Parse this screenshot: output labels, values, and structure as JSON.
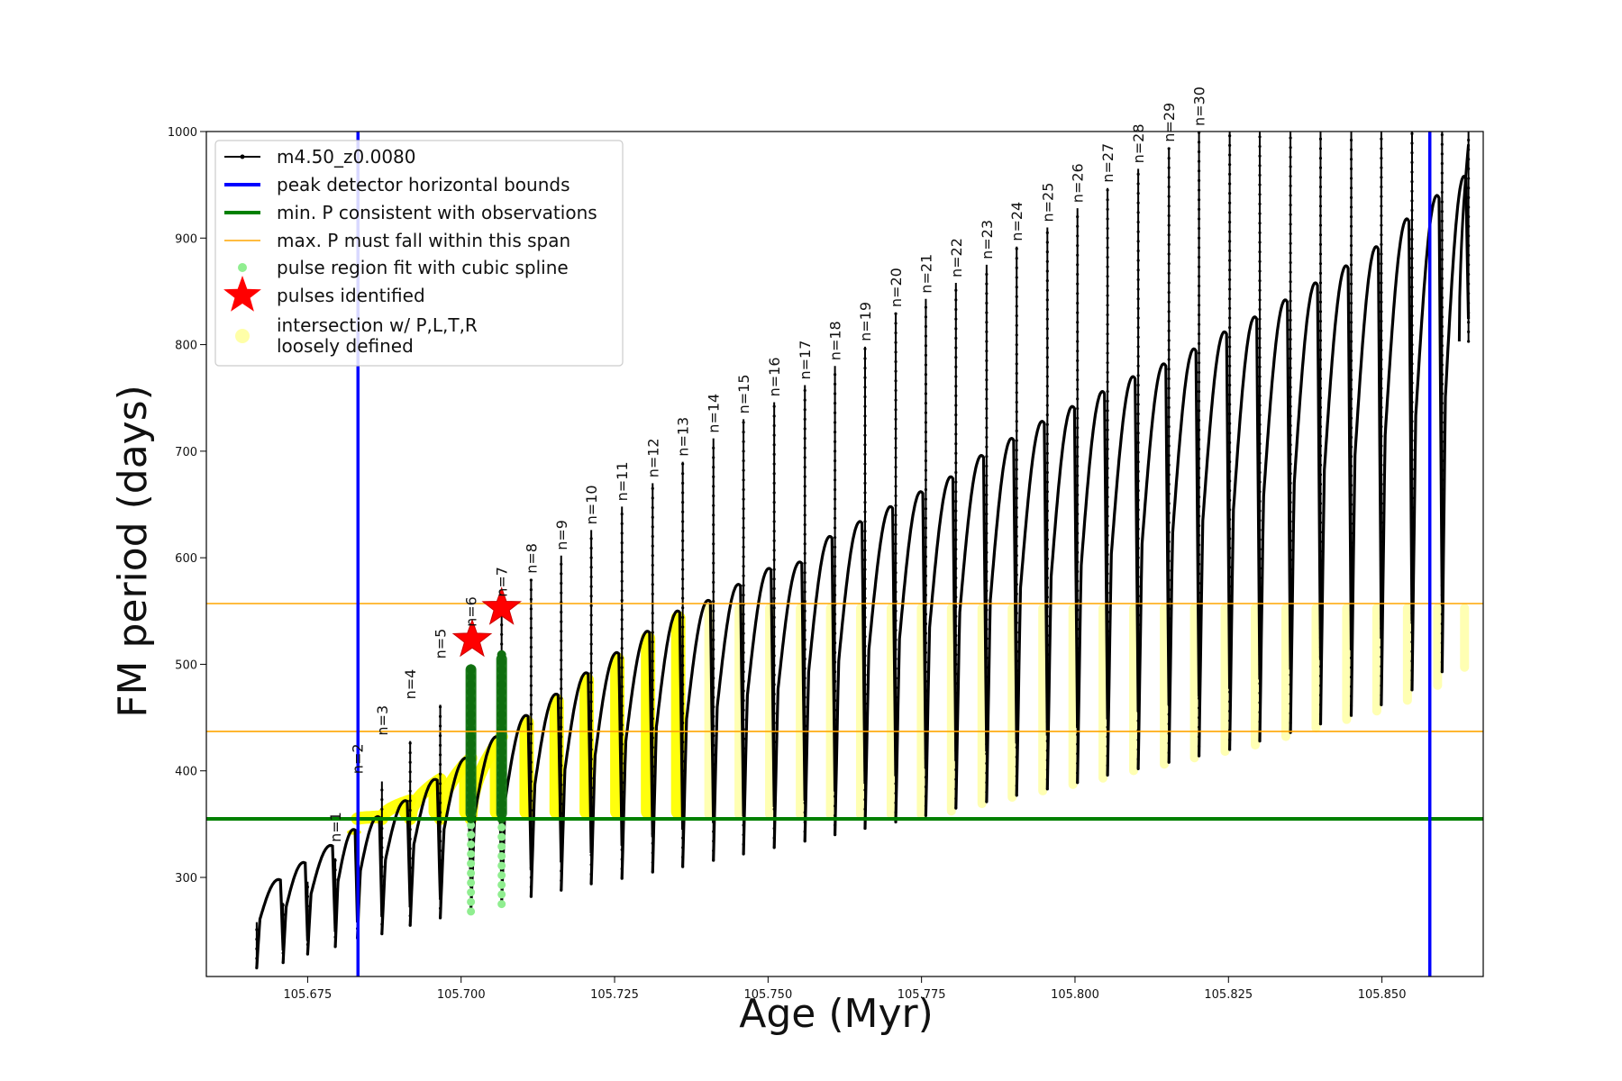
{
  "chart_data": {
    "type": "line",
    "title": "",
    "xlabel": "Age (Myr)",
    "ylabel": "FM period (days)",
    "xlim": [
      105.6585,
      105.8665
    ],
    "ylim": [
      207,
      1000
    ],
    "xticks": [
      105.675,
      105.7,
      105.725,
      105.75,
      105.775,
      105.8,
      105.825,
      105.85
    ],
    "xtick_labels": [
      "105.675",
      "105.700",
      "105.725",
      "105.750",
      "105.775",
      "105.800",
      "105.825",
      "105.850"
    ],
    "yticks": [
      300,
      400,
      500,
      600,
      700,
      800,
      900,
      1000
    ],
    "ytick_labels": [
      "300",
      "400",
      "500",
      "600",
      "700",
      "800",
      "900",
      "1000"
    ],
    "grid": false,
    "legend": {
      "placement": "top-left",
      "entries": [
        {
          "label": "m4.50_z0.0080",
          "marker": "line-dot",
          "color": "#000000"
        },
        {
          "label": "peak detector horizontal bounds",
          "marker": "thick-line",
          "color": "#0000ff"
        },
        {
          "label": "min. P consistent with observations",
          "marker": "thick-line",
          "color": "#008000"
        },
        {
          "label": "max. P must fall within this span",
          "marker": "thin-line",
          "color": "#ffa500"
        },
        {
          "label": "pulse region fit with cubic spline",
          "marker": "dot",
          "color": "#90ee90"
        },
        {
          "label": "pulses identified",
          "marker": "star",
          "color": "#ff0000"
        },
        {
          "label": "intersection w/ P,L,T,R",
          "label2": "loosely defined",
          "marker": "big-dot",
          "color": "#ffff99"
        }
      ]
    },
    "reference_lines": {
      "vertical_blue": [
        105.6832,
        105.8578
      ],
      "horizontal_green": 355,
      "horizontal_orange": [
        437,
        557
      ]
    },
    "series_color": "#000000",
    "pulse_times": [
      105.6667,
      105.671,
      105.675,
      105.6795,
      105.6831,
      105.6871,
      105.6917,
      105.6966,
      105.7016,
      105.7066,
      105.7114,
      105.7163,
      105.7212,
      105.7262,
      105.7312,
      105.7361,
      105.7411,
      105.746,
      105.751,
      105.756,
      105.7609,
      105.7658,
      105.7708,
      105.7757,
      105.7806,
      105.7856,
      105.7905,
      105.7955,
      105.8004,
      105.8053,
      105.8103,
      105.8153,
      105.8202,
      105.8252,
      105.8301,
      105.8351,
      105.84,
      105.845,
      105.8499,
      105.8549,
      105.8598,
      105.8641
    ],
    "pulse_min": [
      215,
      220,
      228,
      235,
      243,
      247,
      255,
      262,
      270,
      276,
      282,
      288,
      294,
      299,
      305,
      310,
      316,
      322,
      328,
      334,
      340,
      346,
      352,
      358,
      365,
      371,
      377,
      383,
      389,
      396,
      402,
      408,
      414,
      420,
      428,
      436,
      444,
      452,
      462,
      476,
      493,
      803
    ],
    "pulse_peak": [
      258,
      276,
      296,
      318,
      340,
      390,
      428,
      462,
      500,
      558,
      580,
      602,
      626,
      648,
      670,
      690,
      712,
      730,
      746,
      762,
      780,
      798,
      830,
      843,
      858,
      875,
      892,
      910,
      928,
      947,
      965,
      985,
      1000,
      1000,
      1000,
      1000,
      1000,
      1000,
      1000,
      1000,
      1000,
      1000
    ],
    "arc_max": [
      298,
      314,
      330,
      345,
      357,
      372,
      392,
      412,
      432,
      452,
      472,
      492,
      511,
      531,
      550,
      560,
      575,
      590,
      596,
      620,
      634,
      648,
      662,
      676,
      696,
      712,
      728,
      742,
      756,
      770,
      782,
      796,
      812,
      826,
      842,
      858,
      874,
      892,
      918,
      940,
      958,
      988
    ],
    "pulse_labels": [
      "n=1",
      "n=2",
      "n=3",
      "n=4",
      "n=5",
      "n=6",
      "n=7",
      "n=8",
      "n=9",
      "n=10",
      "n=11",
      "n=12",
      "n=13",
      "n=14",
      "n=15",
      "n=16",
      "n=17",
      "n=18",
      "n=19",
      "n=20",
      "n=21",
      "n=22",
      "n=23",
      "n=24",
      "n=25",
      "n=26",
      "n=27",
      "n=28",
      "n=29",
      "n=30"
    ],
    "pulse_label_times": [
      105.6795,
      105.6831,
      105.6871,
      105.6917,
      105.6966,
      105.7016,
      105.7066,
      105.7114,
      105.7163,
      105.7212,
      105.7262,
      105.7312,
      105.7361,
      105.7411,
      105.746,
      105.751,
      105.756,
      105.7609,
      105.7658,
      105.7708,
      105.7757,
      105.7806,
      105.7856,
      105.7905,
      105.7955,
      105.8004,
      105.8053,
      105.8103,
      105.8153,
      105.8202
    ],
    "pulse_label_values": [
      328,
      392,
      428,
      462,
      500,
      530,
      558,
      580,
      602,
      626,
      648,
      670,
      690,
      712,
      730,
      746,
      762,
      780,
      798,
      830,
      843,
      858,
      875,
      892,
      910,
      928,
      947,
      965,
      985,
      1000
    ],
    "identified_pulses": [
      {
        "x": 105.7018,
        "y": 523
      },
      {
        "x": 105.7066,
        "y": 553
      }
    ],
    "spline_regions": [
      {
        "x": 105.7016,
        "ymin": 268,
        "ymax": 500
      },
      {
        "x": 105.7066,
        "ymin": 275,
        "ymax": 510
      }
    ]
  }
}
